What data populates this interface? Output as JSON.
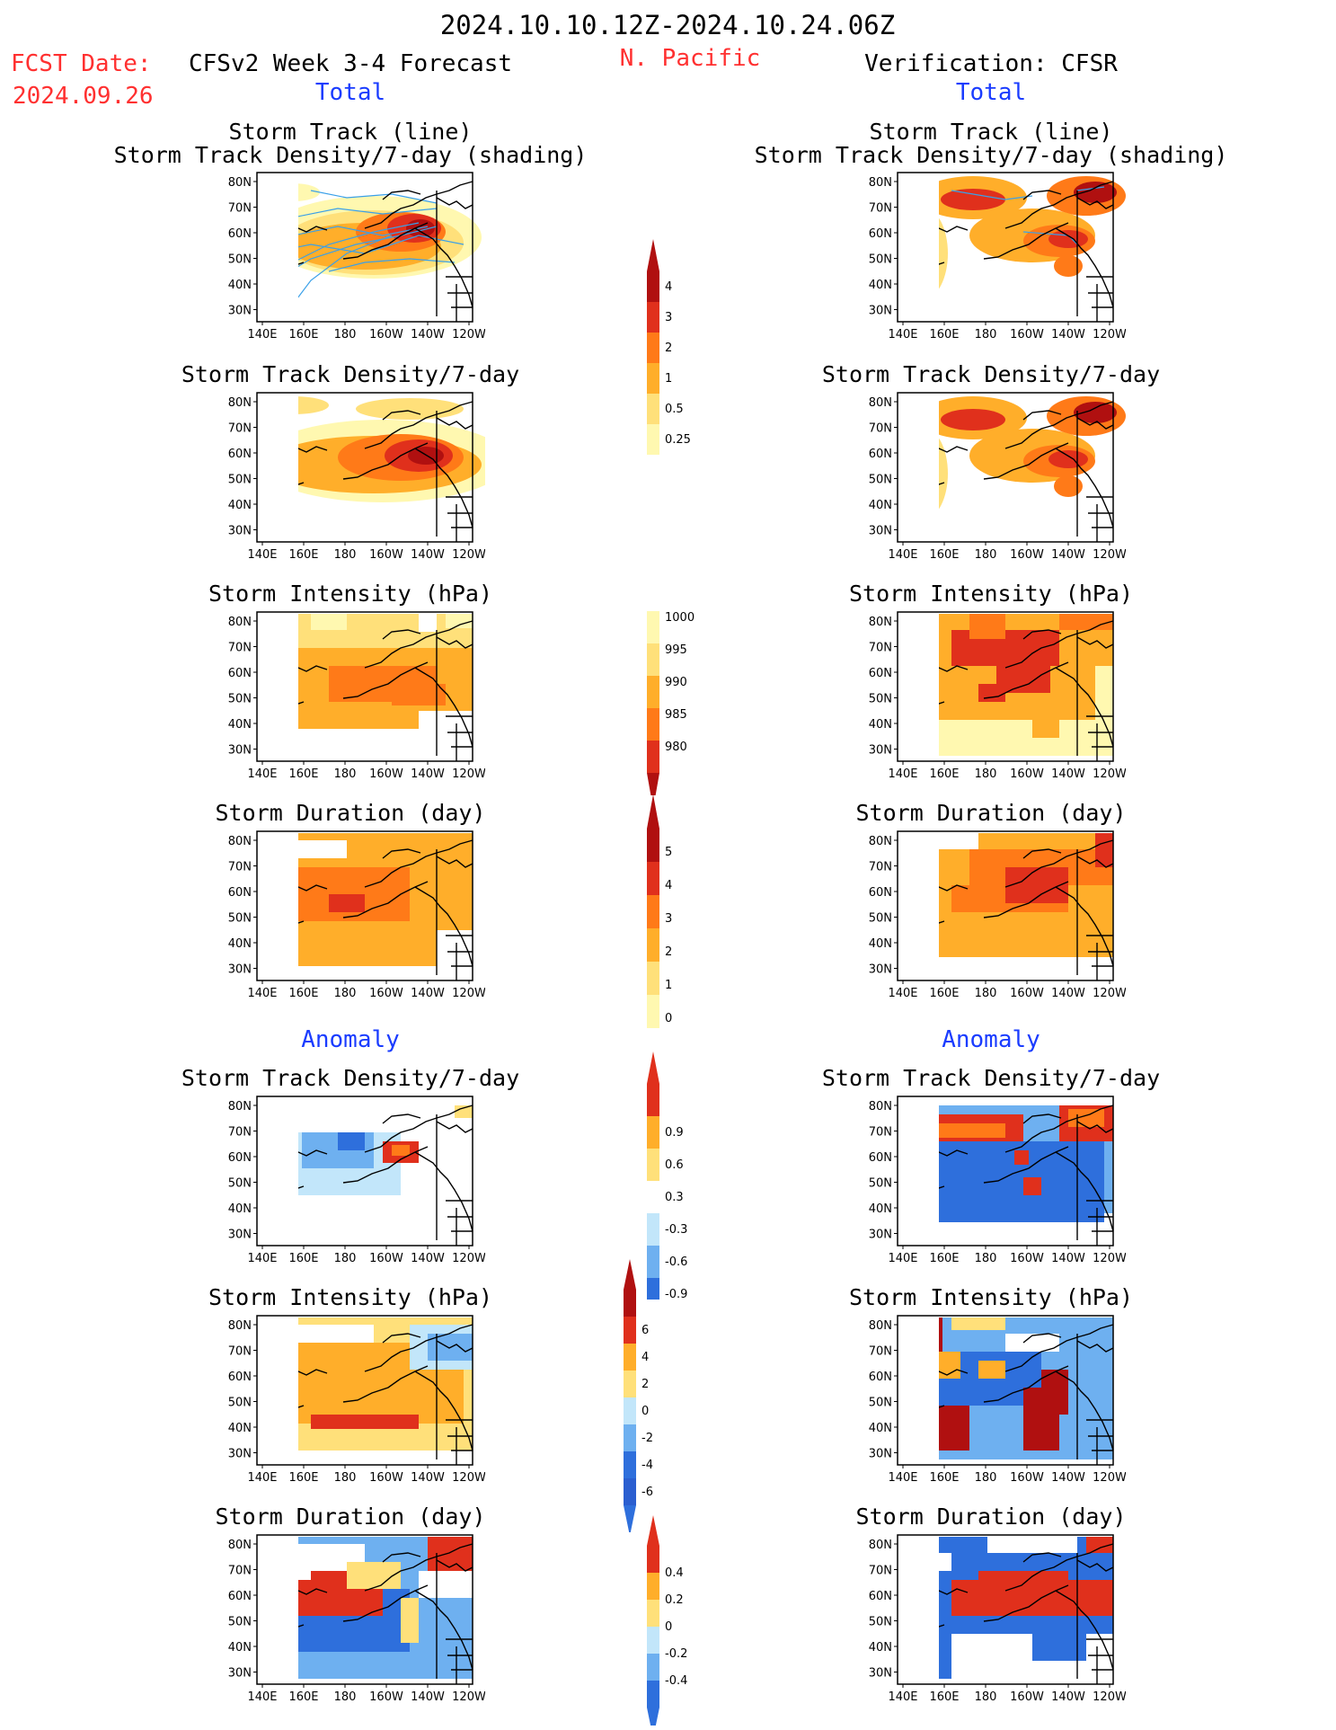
{
  "header": {
    "date_range": "2024.10.10.12Z-2024.10.24.06Z",
    "region": "N. Pacific",
    "fcst_label": "FCST Date:",
    "fcst_date": "2024.09.26",
    "model_title": "CFSv2 Week 3-4 Forecast",
    "verification_title": "Verification: CFSR"
  },
  "section_labels": {
    "total": "Total",
    "anomaly": "Anomaly"
  },
  "titles": {
    "track_line": "Storm Track (line)",
    "track_shading": "Storm Track Density/7-day (shading)",
    "density": "Storm Track Density/7-day",
    "intensity": "Storm Intensity (hPa)",
    "duration": "Storm Duration (day)"
  },
  "axes": {
    "lon_ticks": [
      "140E",
      "160E",
      "180",
      "160W",
      "140W",
      "120W"
    ],
    "lat_ticks": [
      "80N",
      "70N",
      "60N",
      "50N",
      "40N",
      "30N"
    ]
  },
  "colorbars": {
    "density_total": [
      "0.25",
      "0.5",
      "1",
      "2",
      "3",
      "4"
    ],
    "intensity_total": [
      "1000",
      "995",
      "990",
      "985",
      "980"
    ],
    "duration_total": [
      "0",
      "1",
      "2",
      "3",
      "4",
      "5"
    ],
    "density_anom": [
      "-0.9",
      "-0.6",
      "-0.3",
      "0.3",
      "0.6",
      "0.9"
    ],
    "intensity_anom": [
      "-6",
      "-4",
      "-2",
      "0",
      "2",
      "4",
      "6"
    ],
    "duration_anom": [
      "-0.4",
      "-0.2",
      "0",
      "0.2",
      "0.4"
    ]
  },
  "colors": {
    "warm": [
      "#fff8b0",
      "#ffe07a",
      "#ffae2a",
      "#ff7a18",
      "#e0301c",
      "#b01010"
    ],
    "cool": [
      "#2e6fdc",
      "#6eb0f0",
      "#c2e6fa"
    ],
    "red_text": "#ff3030",
    "blue_text": "#1a3cff",
    "track_line": "#3aa0e8"
  }
}
